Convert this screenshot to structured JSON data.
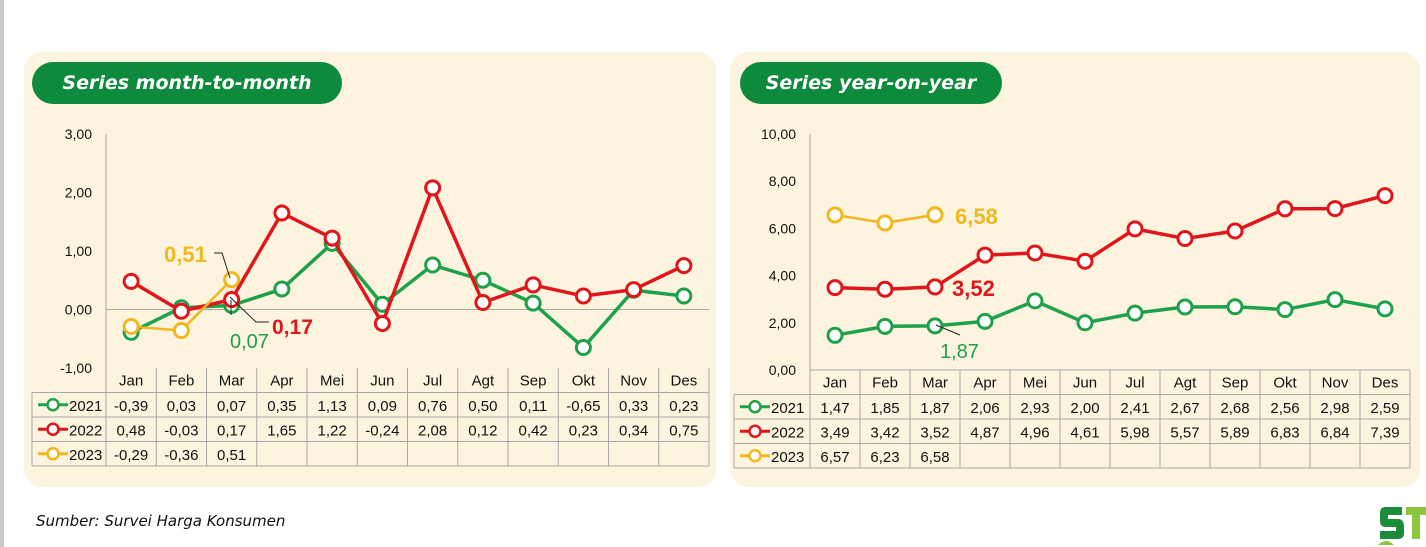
{
  "footer": {
    "source": "Sumber: Survei Harga Konsumen"
  },
  "logo": {
    "name": "ST-logo"
  },
  "chart_data": [
    {
      "id": "mtm",
      "type": "line",
      "title": "Series month-to-month",
      "categories": [
        "Jan",
        "Feb",
        "Mar",
        "Apr",
        "Mei",
        "Jun",
        "Jul",
        "Agt",
        "Sep",
        "Okt",
        "Nov",
        "Des"
      ],
      "ylim": [
        -1,
        3
      ],
      "yticks": [
        "3,00",
        "2,00",
        "1,00",
        "0,00",
        "-1,00"
      ],
      "ytick_values": [
        3,
        2,
        1,
        0,
        -1
      ],
      "series": [
        {
          "name": "2021",
          "color": "#1fa04a",
          "values": [
            -0.39,
            0.03,
            0.07,
            0.35,
            1.13,
            0.09,
            0.76,
            0.5,
            0.11,
            -0.65,
            0.33,
            0.23
          ],
          "labels": [
            "-0,39",
            "0,03",
            "0,07",
            "0,35",
            "1,13",
            "0,09",
            "0,76",
            "0,50",
            "0,11",
            "-0,65",
            "0,33",
            "0,23"
          ]
        },
        {
          "name": "2022",
          "color": "#e0161b",
          "values": [
            0.48,
            -0.03,
            0.17,
            1.65,
            1.22,
            -0.24,
            2.08,
            0.12,
            0.42,
            0.23,
            0.34,
            0.75
          ],
          "labels": [
            "0,48",
            "-0,03",
            "0,17",
            "1,65",
            "1,22",
            "-0,24",
            "2,08",
            "0,12",
            "0,42",
            "0,23",
            "0,34",
            "0,75"
          ]
        },
        {
          "name": "2023",
          "color": "#f0b81c",
          "values": [
            -0.29,
            -0.36,
            0.51
          ],
          "labels": [
            "-0,29",
            "-0,36",
            "0,51"
          ]
        }
      ],
      "annotations": [
        {
          "text": "0,51",
          "series": "2023",
          "color": "#f0b81c"
        },
        {
          "text": "0,17",
          "series": "2022",
          "color": "#e0161b"
        },
        {
          "text": "0,07",
          "series": "2021",
          "color": "#1fa04a"
        }
      ]
    },
    {
      "id": "yoy",
      "type": "line",
      "title": "Series year-on-year",
      "categories": [
        "Jan",
        "Feb",
        "Mar",
        "Apr",
        "Mei",
        "Jun",
        "Jul",
        "Agt",
        "Sep",
        "Okt",
        "Nov",
        "Des"
      ],
      "ylim": [
        0,
        10
      ],
      "yticks": [
        "10,00",
        "8,00",
        "6,00",
        "4,00",
        "2,00",
        "0,00"
      ],
      "ytick_values": [
        10,
        8,
        6,
        4,
        2,
        0
      ],
      "series": [
        {
          "name": "2021",
          "color": "#1fa04a",
          "values": [
            1.47,
            1.85,
            1.87,
            2.06,
            2.93,
            2.0,
            2.41,
            2.67,
            2.68,
            2.56,
            2.98,
            2.59
          ],
          "labels": [
            "1,47",
            "1,85",
            "1,87",
            "2,06",
            "2,93",
            "2,00",
            "2,41",
            "2,67",
            "2,68",
            "2,56",
            "2,98",
            "2,59"
          ]
        },
        {
          "name": "2022",
          "color": "#e0161b",
          "values": [
            3.49,
            3.42,
            3.52,
            4.87,
            4.96,
            4.61,
            5.98,
            5.57,
            5.89,
            6.83,
            6.84,
            7.39
          ],
          "labels": [
            "3,49",
            "3,42",
            "3,52",
            "4,87",
            "4,96",
            "4,61",
            "5,98",
            "5,57",
            "5,89",
            "6,83",
            "6,84",
            "7,39"
          ]
        },
        {
          "name": "2023",
          "color": "#f0b81c",
          "values": [
            6.57,
            6.23,
            6.58
          ],
          "labels": [
            "6,57",
            "6,23",
            "6,58"
          ]
        }
      ],
      "annotations": [
        {
          "text": "6,58",
          "series": "2023",
          "color": "#f0b81c"
        },
        {
          "text": "3,52",
          "series": "2022",
          "color": "#e0161b"
        },
        {
          "text": "1,87",
          "series": "2021",
          "color": "#1fa04a"
        }
      ]
    }
  ]
}
